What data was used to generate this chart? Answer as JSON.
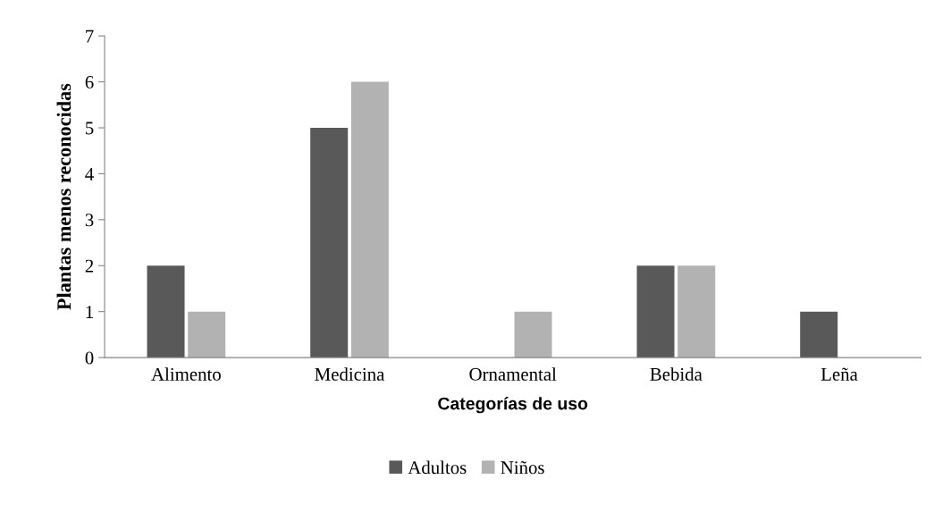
{
  "chart_data": {
    "type": "bar",
    "xlabel": "Categorías de uso",
    "ylabel": "Plantas menos reconocidas",
    "categories": [
      "Alimento",
      "Medicina",
      "Ornamental",
      "Bebida",
      "Leña"
    ],
    "series": [
      {
        "name": "Adultos",
        "color": "#595959",
        "values": [
          2,
          5,
          0,
          2,
          1
        ]
      },
      {
        "name": "Niños",
        "color": "#b2b2b2",
        "values": [
          1,
          6,
          1,
          2,
          0
        ]
      }
    ],
    "ylim": [
      0,
      7
    ],
    "yticks": [
      0,
      1,
      2,
      3,
      4,
      5,
      6,
      7
    ],
    "grid": false,
    "legend": "bottom"
  }
}
